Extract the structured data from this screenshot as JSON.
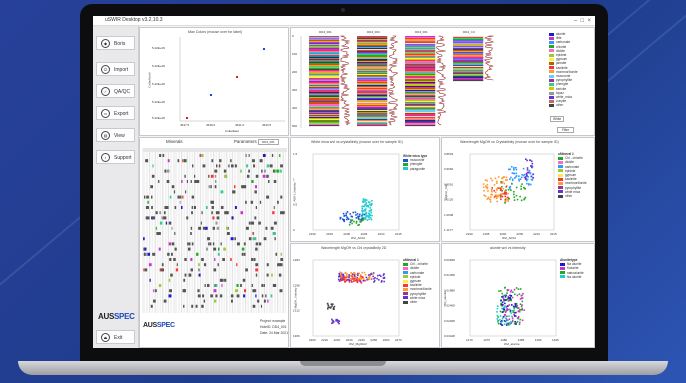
{
  "window": {
    "title": "uSWIR Desktop v3.2.10.3"
  },
  "sidebar": {
    "items": [
      {
        "label": "Boris",
        "icon": "boris-icon"
      },
      {
        "label": "Import",
        "icon": "power-icon"
      },
      {
        "label": "QA/QC",
        "icon": "check-icon"
      },
      {
        "label": "Export",
        "icon": "export-icon"
      },
      {
        "label": "View",
        "icon": "view-icon"
      },
      {
        "label": "Support",
        "icon": "info-icon"
      },
      {
        "label": "Exit",
        "icon": "exit-icon"
      }
    ],
    "logo_a": "AUS",
    "logo_b": "SPEC"
  },
  "top_scatter": {
    "title": "Max Colors (mouse over for label)",
    "xlabel": "CollarEast",
    "ylabel": "CollarNorth",
    "yticks": [
      "5.42E+06",
      "5.42E+06",
      "5.42E+06",
      "5.42E+06",
      "5.42E+06"
    ],
    "xticks": [
      "4637.5",
      "4639.0",
      "4641.0",
      "4643.5"
    ]
  },
  "logs": {
    "tracks": [
      "DD4_001",
      "DD4_00C",
      "DD4_001",
      "DD4_CC"
    ],
    "depth_ticks": [
      "0",
      "100",
      "200",
      "300",
      "400",
      "500"
    ],
    "legend": [
      {
        "label": "alunite",
        "color": "#1b1bd0"
      },
      {
        "label": "illite",
        "color": "#cc33cc"
      },
      {
        "label": "carbonate",
        "color": "#3399ff"
      },
      {
        "label": "chlorite",
        "color": "#22aa22"
      },
      {
        "label": "dickite",
        "color": "#ff66cc"
      },
      {
        "label": "epidote",
        "color": "#99cc33"
      },
      {
        "label": "gypsum",
        "color": "#ffee44"
      },
      {
        "label": "jarosite",
        "color": "#aa6600"
      },
      {
        "label": "kaolinite",
        "color": "#ff3333"
      },
      {
        "label": "montmorillonite",
        "color": "#ff9933"
      },
      {
        "label": "muscovite",
        "color": "#66ccff"
      },
      {
        "label": "pyrophyllite",
        "color": "#993399"
      },
      {
        "label": "phengite",
        "color": "#33cc99"
      },
      {
        "label": "sericite",
        "color": "#cccc00"
      },
      {
        "label": "topaz",
        "color": "#999999"
      },
      {
        "label": "white_mica",
        "color": "#6633cc"
      },
      {
        "label": "zunyite",
        "color": "#cc6666"
      },
      {
        "label": "other",
        "color": "#444444"
      }
    ],
    "controls": [
      "White",
      "Filter"
    ]
  },
  "table": {
    "headers": [
      "Minerals",
      "Parameters"
    ],
    "selector": "DD4_001"
  },
  "project": {
    "project": "Project:  example",
    "holeid": "HoleID:  DD4_001",
    "date": "Date:    24 Mar 2021"
  },
  "plot1": {
    "title": "White mica wvl vs crystallinity (mouse over for sample ID)",
    "xlabel": "Wvl_AlOH",
    "ylabel": "AlOH_Xtalinity",
    "legend_title": "White mica type",
    "legend": [
      {
        "label": "muscovite",
        "color": "#1b55d8"
      },
      {
        "label": "phengite",
        "color": "#22aa22"
      },
      {
        "label": "paragonite",
        "color": "#22cccc"
      }
    ],
    "xticks": [
      "2190",
      "2195",
      "2200",
      "2205",
      "2210",
      "2215"
    ],
    "yticks": [
      "0",
      "0.5",
      "1",
      "1.5"
    ]
  },
  "plot2": {
    "title": "Wavelength MgOH vs Crystallinity (mouse over for sample ID)",
    "xlabel": "Wvl_AlOH",
    "ylabel": "MgOH_Xtal",
    "legend_title": "uMineral 1",
    "yticks": [
      "1.1177",
      "1.0648",
      "1.0120",
      "0.9591",
      "0.9062",
      "0.8533"
    ],
    "xticks": [
      "2190",
      "2195",
      "2200",
      "2205",
      "2210",
      "2215"
    ]
  },
  "plot3": {
    "title": "Wavelength MgOH vs Chl crystallinity 2D",
    "xlabel": "Wvl_MgOH/2",
    "ylabel": "MgOH_Xtalinity",
    "legend_title": "uMineral 1",
    "xticks": [
      "2200",
      "2210",
      "2220",
      "2230",
      "2240",
      "2250",
      "2260",
      "2270"
    ],
    "yticks": [
      "1366",
      "1312",
      "1298",
      "1284"
    ]
  },
  "plot4": {
    "title": "alunite wvl vs intensity",
    "xlabel": "Wvl_alunite",
    "ylabel": "Int_alunite",
    "legend_title": "Alunitetype",
    "legend": [
      {
        "label": "Na alunite",
        "color": "#1b1bd0"
      },
      {
        "label": "Kalunite",
        "color": "#cc33cc"
      },
      {
        "label": "natroalunite",
        "color": "#22aa22"
      },
      {
        "label": "Na alunite",
        "color": "#22cccc"
      }
    ],
    "xticks": [
      "1470",
      "1475",
      "1480",
      "1485",
      "1490",
      "1495"
    ],
    "yticks": [
      "0.03448",
      "0.02928",
      "0.02408",
      "0.01888",
      "0.01368",
      "0.00848"
    ]
  },
  "mineral_legend": [
    {
      "label": "Chl - chlorite",
      "color": "#22aa22"
    },
    {
      "label": "dickite",
      "color": "#ff66cc"
    },
    {
      "label": "carbonate",
      "color": "#3399ff"
    },
    {
      "label": "epidote",
      "color": "#99cc33"
    },
    {
      "label": "gypsum",
      "color": "#ffee44"
    },
    {
      "label": "kaolinite",
      "color": "#ff3333"
    },
    {
      "label": "montmorillonite",
      "color": "#ff9933"
    },
    {
      "label": "pyrophyllite",
      "color": "#993399"
    },
    {
      "label": "white mica",
      "color": "#6633cc"
    },
    {
      "label": "other",
      "color": "#444444"
    }
  ]
}
